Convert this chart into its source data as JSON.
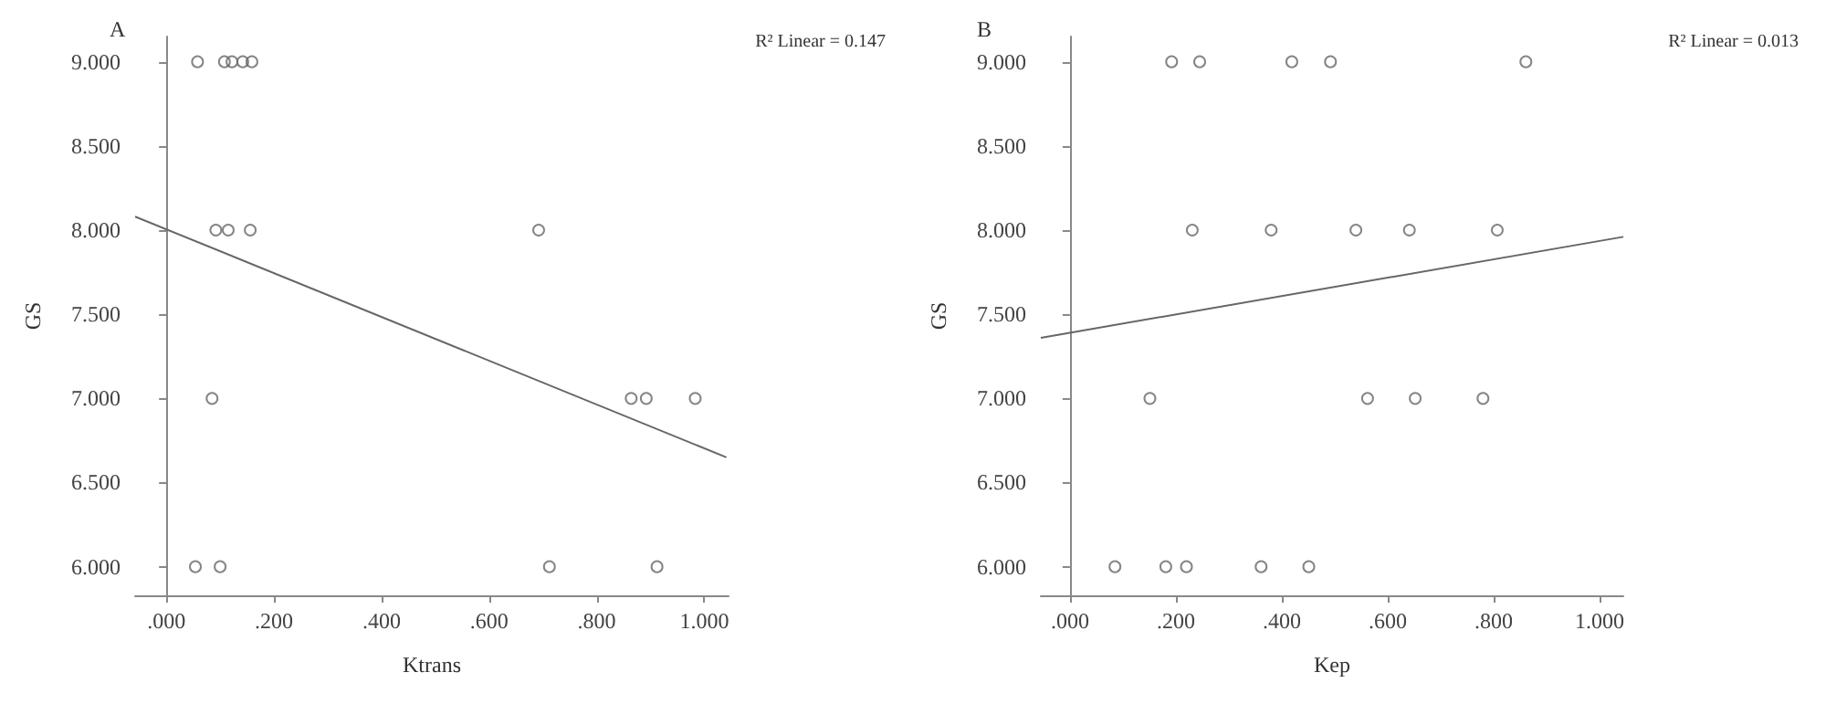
{
  "chart_data": [
    {
      "type": "scatter",
      "title": "A",
      "xlabel": "Ktrans",
      "ylabel": "GS",
      "annotations": [
        "R² Linear = 0.147"
      ],
      "grid": false,
      "xlim": [
        -0.058,
        1.045
      ],
      "ylim": [
        5.83,
        9.15
      ],
      "xticks": [
        {
          "value": 0,
          "label": ".000"
        },
        {
          "value": 0.2,
          "label": ".200"
        },
        {
          "value": 0.4,
          "label": ".400"
        },
        {
          "value": 0.6,
          "label": ".600"
        },
        {
          "value": 0.8,
          "label": ".800"
        },
        {
          "value": 1,
          "label": "1.000"
        }
      ],
      "yticks": [
        {
          "value": 6,
          "label": "6.000"
        },
        {
          "value": 6.5,
          "label": "6.500"
        },
        {
          "value": 7,
          "label": "7.000"
        },
        {
          "value": 7.5,
          "label": "7.500"
        },
        {
          "value": 8,
          "label": "8.000"
        },
        {
          "value": 8.5,
          "label": "8.500"
        },
        {
          "value": 9,
          "label": "9.000"
        }
      ],
      "series": [
        {
          "marker": "circle",
          "color": "#666666",
          "x": [
            0.058,
            0.108,
            0.122,
            0.142,
            0.159,
            0.092,
            0.115,
            0.156,
            0.692,
            0.085,
            0.864,
            0.892,
            0.983,
            0.054,
            0.1,
            0.712,
            0.912
          ],
          "values": [
            9,
            9,
            9,
            9,
            9,
            8,
            8,
            8,
            8,
            7,
            7,
            7,
            7,
            6,
            6,
            6,
            6
          ]
        },
        {
          "type": "line",
          "marker": "none",
          "color": "#666666",
          "x": [
            -0.058,
            1.041
          ],
          "values": [
            8.08,
            6.65
          ]
        }
      ]
    },
    {
      "type": "scatter",
      "title": "B",
      "xlabel": "Kep",
      "ylabel": "GS",
      "annotations": [
        "R² Linear = 0.013"
      ],
      "grid": false,
      "xlim": [
        -0.055,
        1.045
      ],
      "ylim": [
        5.83,
        9.15
      ],
      "xticks": [
        {
          "value": 0,
          "label": ".000"
        },
        {
          "value": 0.2,
          "label": ".200"
        },
        {
          "value": 0.4,
          "label": ".400"
        },
        {
          "value": 0.6,
          "label": ".600"
        },
        {
          "value": 0.8,
          "label": ".800"
        },
        {
          "value": 1,
          "label": "1.000"
        }
      ],
      "yticks": [
        {
          "value": 6,
          "label": "6.000"
        },
        {
          "value": 6.5,
          "label": "6.500"
        },
        {
          "value": 7,
          "label": "7.000"
        },
        {
          "value": 7.5,
          "label": "7.500"
        },
        {
          "value": 8,
          "label": "8.000"
        },
        {
          "value": 8.5,
          "label": "8.500"
        },
        {
          "value": 9,
          "label": "9.000"
        }
      ],
      "series": [
        {
          "marker": "circle",
          "color": "#666666",
          "x": [
            0.192,
            0.245,
            0.419,
            0.492,
            0.861,
            0.231,
            0.38,
            0.54,
            0.641,
            0.807,
            0.151,
            0.562,
            0.652,
            0.78,
            0.085,
            0.181,
            0.22,
            0.361,
            0.451
          ],
          "values": [
            9,
            9,
            9,
            9,
            9,
            8,
            8,
            8,
            8,
            8,
            7,
            7,
            7,
            7,
            6,
            6,
            6,
            6,
            6
          ]
        },
        {
          "type": "line",
          "marker": "none",
          "color": "#666666",
          "x": [
            -0.055,
            1.045
          ],
          "values": [
            7.36,
            7.96
          ]
        }
      ]
    }
  ]
}
